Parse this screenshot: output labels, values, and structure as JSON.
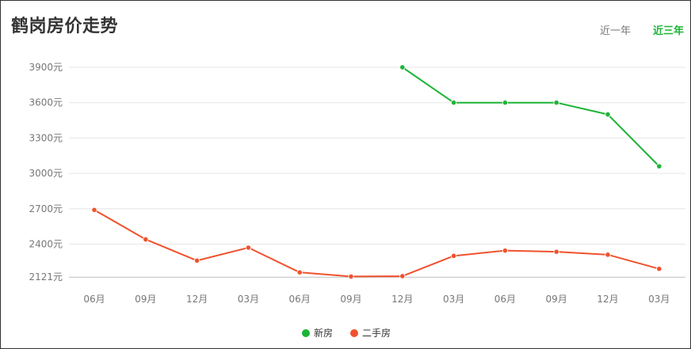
{
  "header": {
    "title": "鹤岗房价走势"
  },
  "tabs": [
    {
      "label": "近一年",
      "active": false
    },
    {
      "label": "近三年",
      "active": true
    }
  ],
  "colors": {
    "new": "#1db436",
    "second": "#f0522e",
    "grid": "#e6e6e6"
  },
  "chart_data": {
    "type": "line",
    "title": "鹤岗房价走势",
    "categories": [
      "06月",
      "09月",
      "12月",
      "03月",
      "06月",
      "09月",
      "12月",
      "03月",
      "06月",
      "09月",
      "12月",
      "03月"
    ],
    "y_ticks": [
      2121,
      2400,
      2700,
      3000,
      3300,
      3600,
      3900
    ],
    "y_tick_labels": [
      "2121元",
      "2400元",
      "2700元",
      "3000元",
      "3300元",
      "3600元",
      "3900元"
    ],
    "ylim": [
      2121,
      3900
    ],
    "grid": true,
    "legend_position": "bottom",
    "series": [
      {
        "name": "新房",
        "color": "#1db436",
        "values": [
          null,
          null,
          null,
          null,
          null,
          null,
          3900,
          3600,
          3600,
          3600,
          3500,
          3060
        ]
      },
      {
        "name": "二手房",
        "color": "#f0522e",
        "values": [
          2690,
          2440,
          2260,
          2370,
          2160,
          2125,
          2128,
          2300,
          2345,
          2335,
          2310,
          2190
        ]
      }
    ]
  }
}
